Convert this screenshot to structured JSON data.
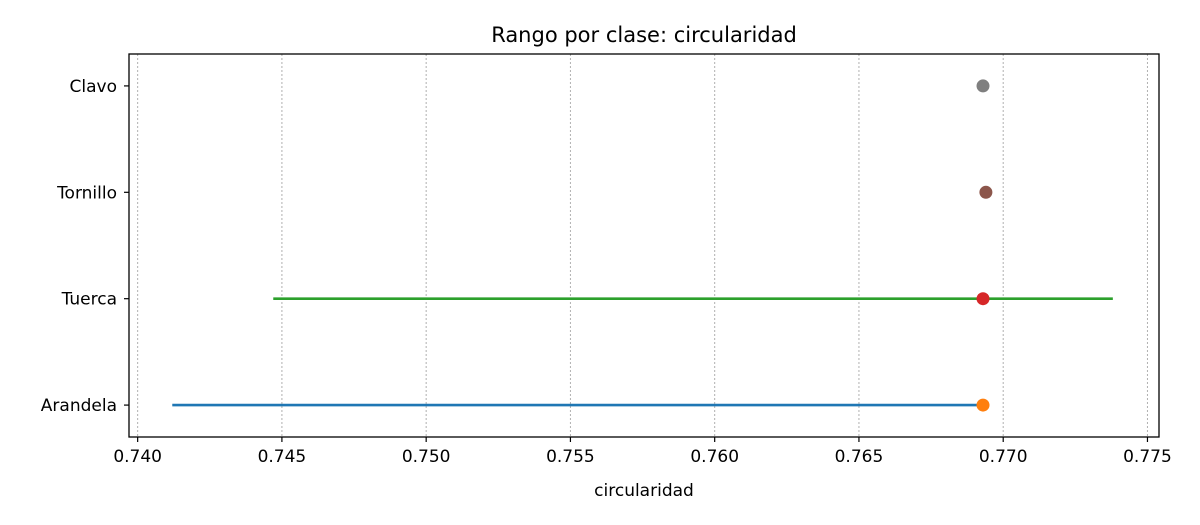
{
  "chart_data": {
    "type": "range",
    "title": "Rango por clase: circularidad",
    "xlabel": "circularidad",
    "ylabel": "",
    "xlim": [
      0.7397,
      0.7754
    ],
    "x_ticks": [
      0.74,
      0.745,
      0.75,
      0.755,
      0.76,
      0.765,
      0.77,
      0.775
    ],
    "x_tick_labels": [
      "0.740",
      "0.745",
      "0.750",
      "0.755",
      "0.760",
      "0.765",
      "0.770",
      "0.775"
    ],
    "categories": [
      "Arandela",
      "Tuerca",
      "Tornillo",
      "Clavo"
    ],
    "ranges": [
      {
        "category": "Arandela",
        "min": 0.7412,
        "max": 0.7693,
        "point": 0.7693,
        "line_color": "#1f77b4",
        "point_color": "#ff7f0e"
      },
      {
        "category": "Tuerca",
        "min": 0.7447,
        "max": 0.7738,
        "point": 0.7693,
        "line_color": "#2ca02c",
        "point_color": "#d62728"
      },
      {
        "category": "Tornillo",
        "min": 0.7694,
        "max": 0.7694,
        "point": 0.7694,
        "line_color": "#9467bd",
        "point_color": "#8c564b"
      },
      {
        "category": "Clavo",
        "min": 0.7693,
        "max": 0.7693,
        "point": 0.7693,
        "line_color": "#e377c2",
        "point_color": "#7f7f7f"
      }
    ],
    "grid": {
      "x": true,
      "y": false,
      "style": "dotted"
    },
    "legend": "none"
  }
}
